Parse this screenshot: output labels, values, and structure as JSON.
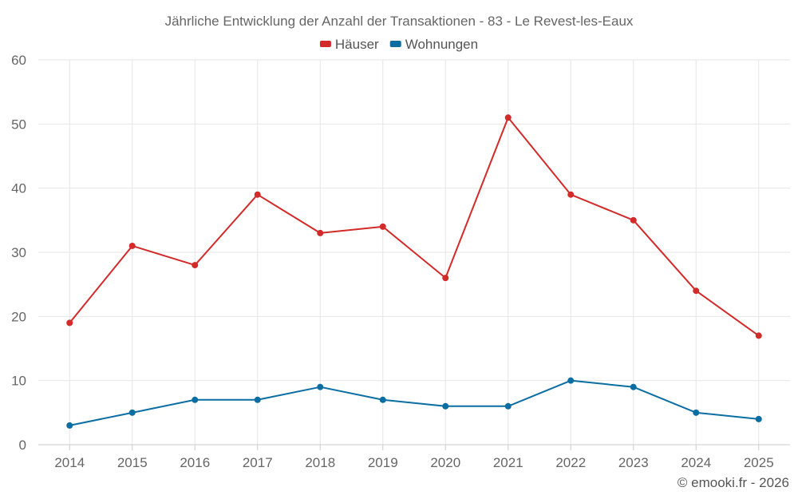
{
  "chart_data": {
    "type": "line",
    "title": "Jährliche Entwicklung der Anzahl der Transaktionen - 83 - Le Revest-les-Eaux",
    "xlabel": "",
    "ylabel": "",
    "categories": [
      "2014",
      "2015",
      "2016",
      "2017",
      "2018",
      "2019",
      "2020",
      "2021",
      "2022",
      "2023",
      "2024",
      "2025"
    ],
    "ylim": [
      0,
      60
    ],
    "yticks": [
      0,
      10,
      20,
      30,
      40,
      50,
      60
    ],
    "grid": true,
    "legend_position": "top-center",
    "series": [
      {
        "name": "Häuser",
        "color": "#d32a2a",
        "values": [
          19,
          31,
          28,
          39,
          33,
          34,
          26,
          51,
          39,
          35,
          24,
          17
        ]
      },
      {
        "name": "Wohnungen",
        "color": "#0b6ea3",
        "values": [
          3,
          5,
          7,
          7,
          9,
          7,
          6,
          6,
          10,
          9,
          5,
          4
        ]
      }
    ]
  },
  "credit": "© emooki.fr - 2026"
}
